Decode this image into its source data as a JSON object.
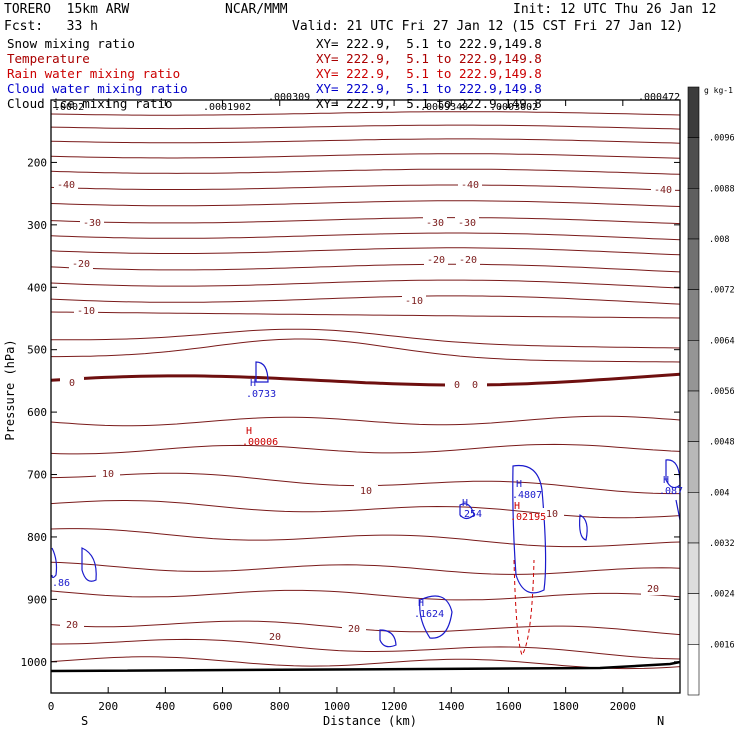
{
  "header": {
    "model": "TORERO  15km ARW",
    "center": "NCAR/MMM",
    "init": "Init: 12 UTC Thu 26 Jan 12",
    "fcst": "Fcst:   33 h",
    "valid": "Valid: 21 UTC Fri 27 Jan 12 (15 CST Fri 27 Jan 12)"
  },
  "legend": [
    {
      "name": "Snow mixing ratio",
      "xy": "XY= 222.9,  5.1 to 222.9,149.8",
      "color": "#000000"
    },
    {
      "name": "Temperature",
      "xy": "XY= 222.9,  5.1 to 222.9,149.8",
      "color": "#aa0000"
    },
    {
      "name": "Rain water mixing ratio",
      "xy": "XY= 222.9,  5.1 to 222.9,149.8",
      "color": "#cc0000"
    },
    {
      "name": "Cloud water mixing ratio",
      "xy": "XY= 222.9,  5.1 to 222.9,149.8",
      "color": "#0000cc"
    },
    {
      "name": "Cloud ice mixing ratio",
      "xy": "XY= 222.9,  5.1 to 222.9,149.8",
      "color": "#000000"
    }
  ],
  "chart_data": {
    "type": "contour-cross-section",
    "xlabel": "Distance (km)",
    "ylabel": "Pressure (hPa)",
    "xlim": [
      0,
      2200
    ],
    "ylim": [
      1050,
      100
    ],
    "x_ticks": [
      0,
      200,
      400,
      600,
      800,
      1000,
      1200,
      1400,
      1600,
      1800,
      2000
    ],
    "y_ticks": [
      200,
      300,
      400,
      500,
      600,
      700,
      800,
      900,
      1000
    ],
    "endpoint_labels": {
      "left": "S",
      "right": "N"
    },
    "temperature_contour_labels": [
      "-40",
      "-40",
      "-40",
      "-30",
      "-30",
      "-30",
      "-20",
      "-20",
      "-20",
      "-10",
      "-10",
      "0",
      "0",
      "0",
      "10",
      "10",
      "10",
      "20",
      "20",
      "20",
      "20"
    ],
    "maxima_labels": [
      {
        "marker": "H",
        "value": ".0733",
        "series": "cloud_water"
      },
      {
        "marker": "H",
        "value": ".00006",
        "series": "rain_water"
      },
      {
        "marker": "H",
        "value": ".254",
        "series": "cloud_water"
      },
      {
        "marker": "H",
        "value": ".4807",
        "series": "cloud_water"
      },
      {
        "marker": "H",
        "value": ".02195",
        "series": "rain_water"
      },
      {
        "marker": "H",
        "value": ".087",
        "series": "cloud_water"
      },
      {
        "marker": "H",
        "value": ".1624",
        "series": "cloud_water"
      },
      {
        "marker": "",
        "value": ".86",
        "series": "cloud_water"
      }
    ],
    "top_labels": [
      ".0002",
      ".0001902",
      ".000309",
      ".0009348",
      ".0003602",
      ".000472"
    ],
    "colorbar": {
      "unit": "g kg-1",
      "labels": [
        ".0096",
        ".0088",
        ".008",
        ".0072",
        ".0064",
        ".0056",
        ".0048",
        ".004",
        ".0032",
        ".0024",
        ".0016"
      ]
    }
  }
}
